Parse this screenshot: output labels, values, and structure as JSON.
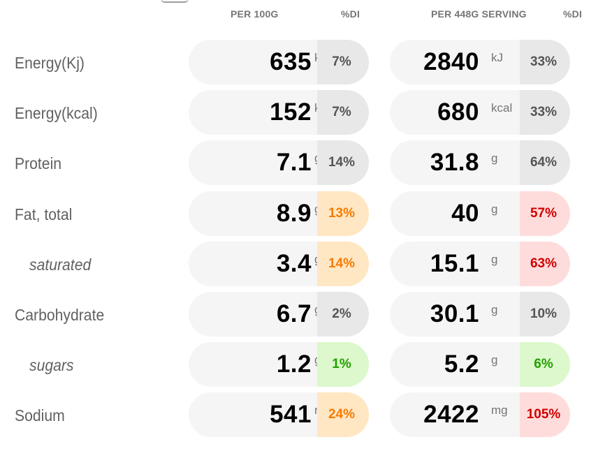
{
  "header": {
    "per100g": "PER 100G",
    "di1": "%DI",
    "perServing": "PER 448G SERVING",
    "di2": "%DI"
  },
  "rows": [
    {
      "label": "Energy(Kj)",
      "sub": false,
      "v100": "635",
      "unit": "kJ",
      "pct100": "7%",
      "c100": "grey",
      "vServ": "2840",
      "pctServ": "33%",
      "cServ": "grey"
    },
    {
      "label": "Energy(kcal)",
      "sub": false,
      "v100": "152",
      "unit": "kcal",
      "pct100": "7%",
      "c100": "grey",
      "vServ": "680",
      "pctServ": "33%",
      "cServ": "grey"
    },
    {
      "label": "Protein",
      "sub": false,
      "v100": "7.1",
      "unit": "g",
      "pct100": "14%",
      "c100": "grey",
      "vServ": "31.8",
      "pctServ": "64%",
      "cServ": "grey"
    },
    {
      "label": "Fat, total",
      "sub": false,
      "v100": "8.9",
      "unit": "g",
      "pct100": "13%",
      "c100": "orange",
      "vServ": "40",
      "pctServ": "57%",
      "cServ": "red"
    },
    {
      "label": "saturated",
      "sub": true,
      "v100": "3.4",
      "unit": "g",
      "pct100": "14%",
      "c100": "orange",
      "vServ": "15.1",
      "pctServ": "63%",
      "cServ": "red"
    },
    {
      "label": "Carbohydrate",
      "sub": false,
      "v100": "6.7",
      "unit": "g",
      "pct100": "2%",
      "c100": "grey",
      "vServ": "30.1",
      "pctServ": "10%",
      "cServ": "grey"
    },
    {
      "label": "sugars",
      "sub": true,
      "v100": "1.2",
      "unit": "g",
      "pct100": "1%",
      "c100": "green",
      "vServ": "5.2",
      "pctServ": "6%",
      "cServ": "green"
    },
    {
      "label": "Sodium",
      "sub": false,
      "v100": "541",
      "unit": "mg",
      "pct100": "24%",
      "c100": "orange",
      "vServ": "2422",
      "pctServ": "105%",
      "cServ": "red"
    }
  ]
}
